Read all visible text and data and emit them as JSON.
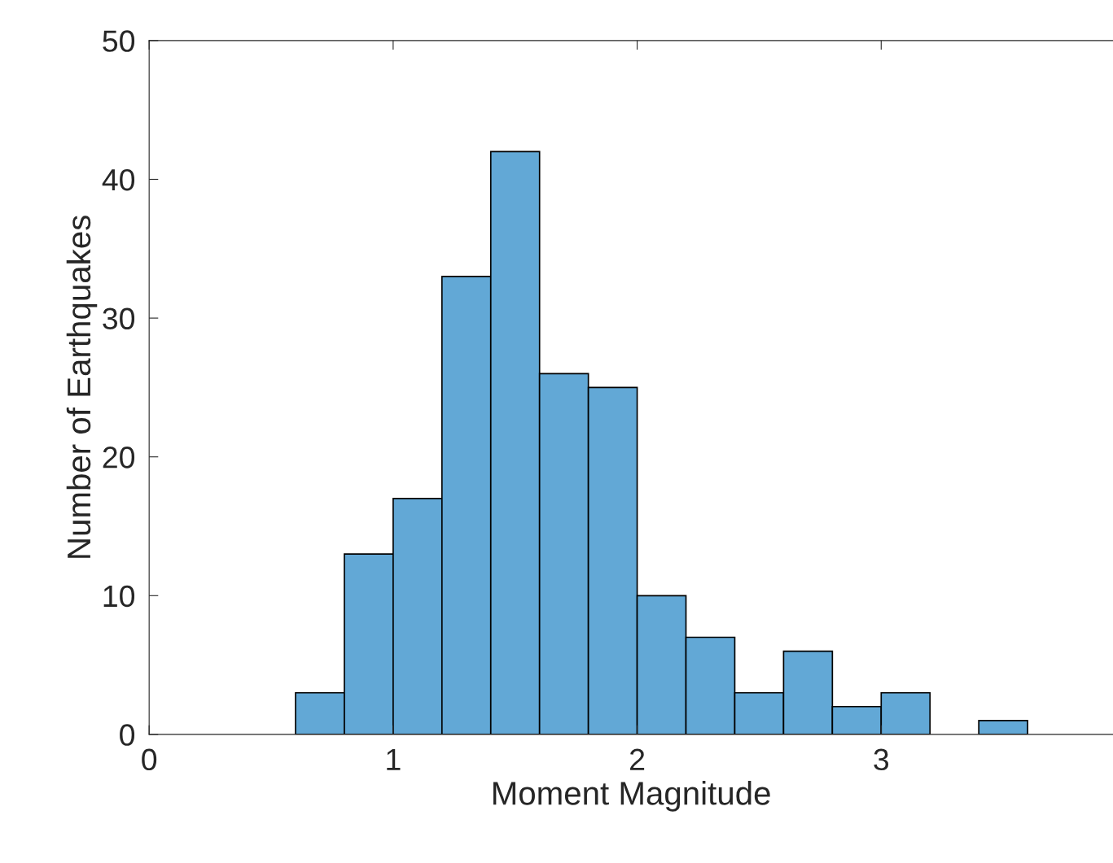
{
  "chart_data": {
    "type": "histogram",
    "xlabel": "Moment Magnitude",
    "ylabel": "Number of Earthquakes",
    "bins": [
      0.6,
      0.8,
      1.0,
      1.2,
      1.4,
      1.6,
      1.8,
      2.0,
      2.2,
      2.4,
      2.6,
      2.8,
      3.0,
      3.2,
      3.4,
      3.6
    ],
    "values": [
      3,
      13,
      17,
      33,
      42,
      26,
      25,
      10,
      7,
      3,
      6,
      2,
      3,
      0,
      1
    ],
    "color": "#62a8d6",
    "xlim": [
      0,
      3.95
    ],
    "ylim": [
      0,
      50
    ],
    "xticks": [
      0,
      1,
      2,
      3
    ],
    "yticks": [
      0,
      10,
      20,
      30,
      40,
      50
    ],
    "grid": false
  }
}
